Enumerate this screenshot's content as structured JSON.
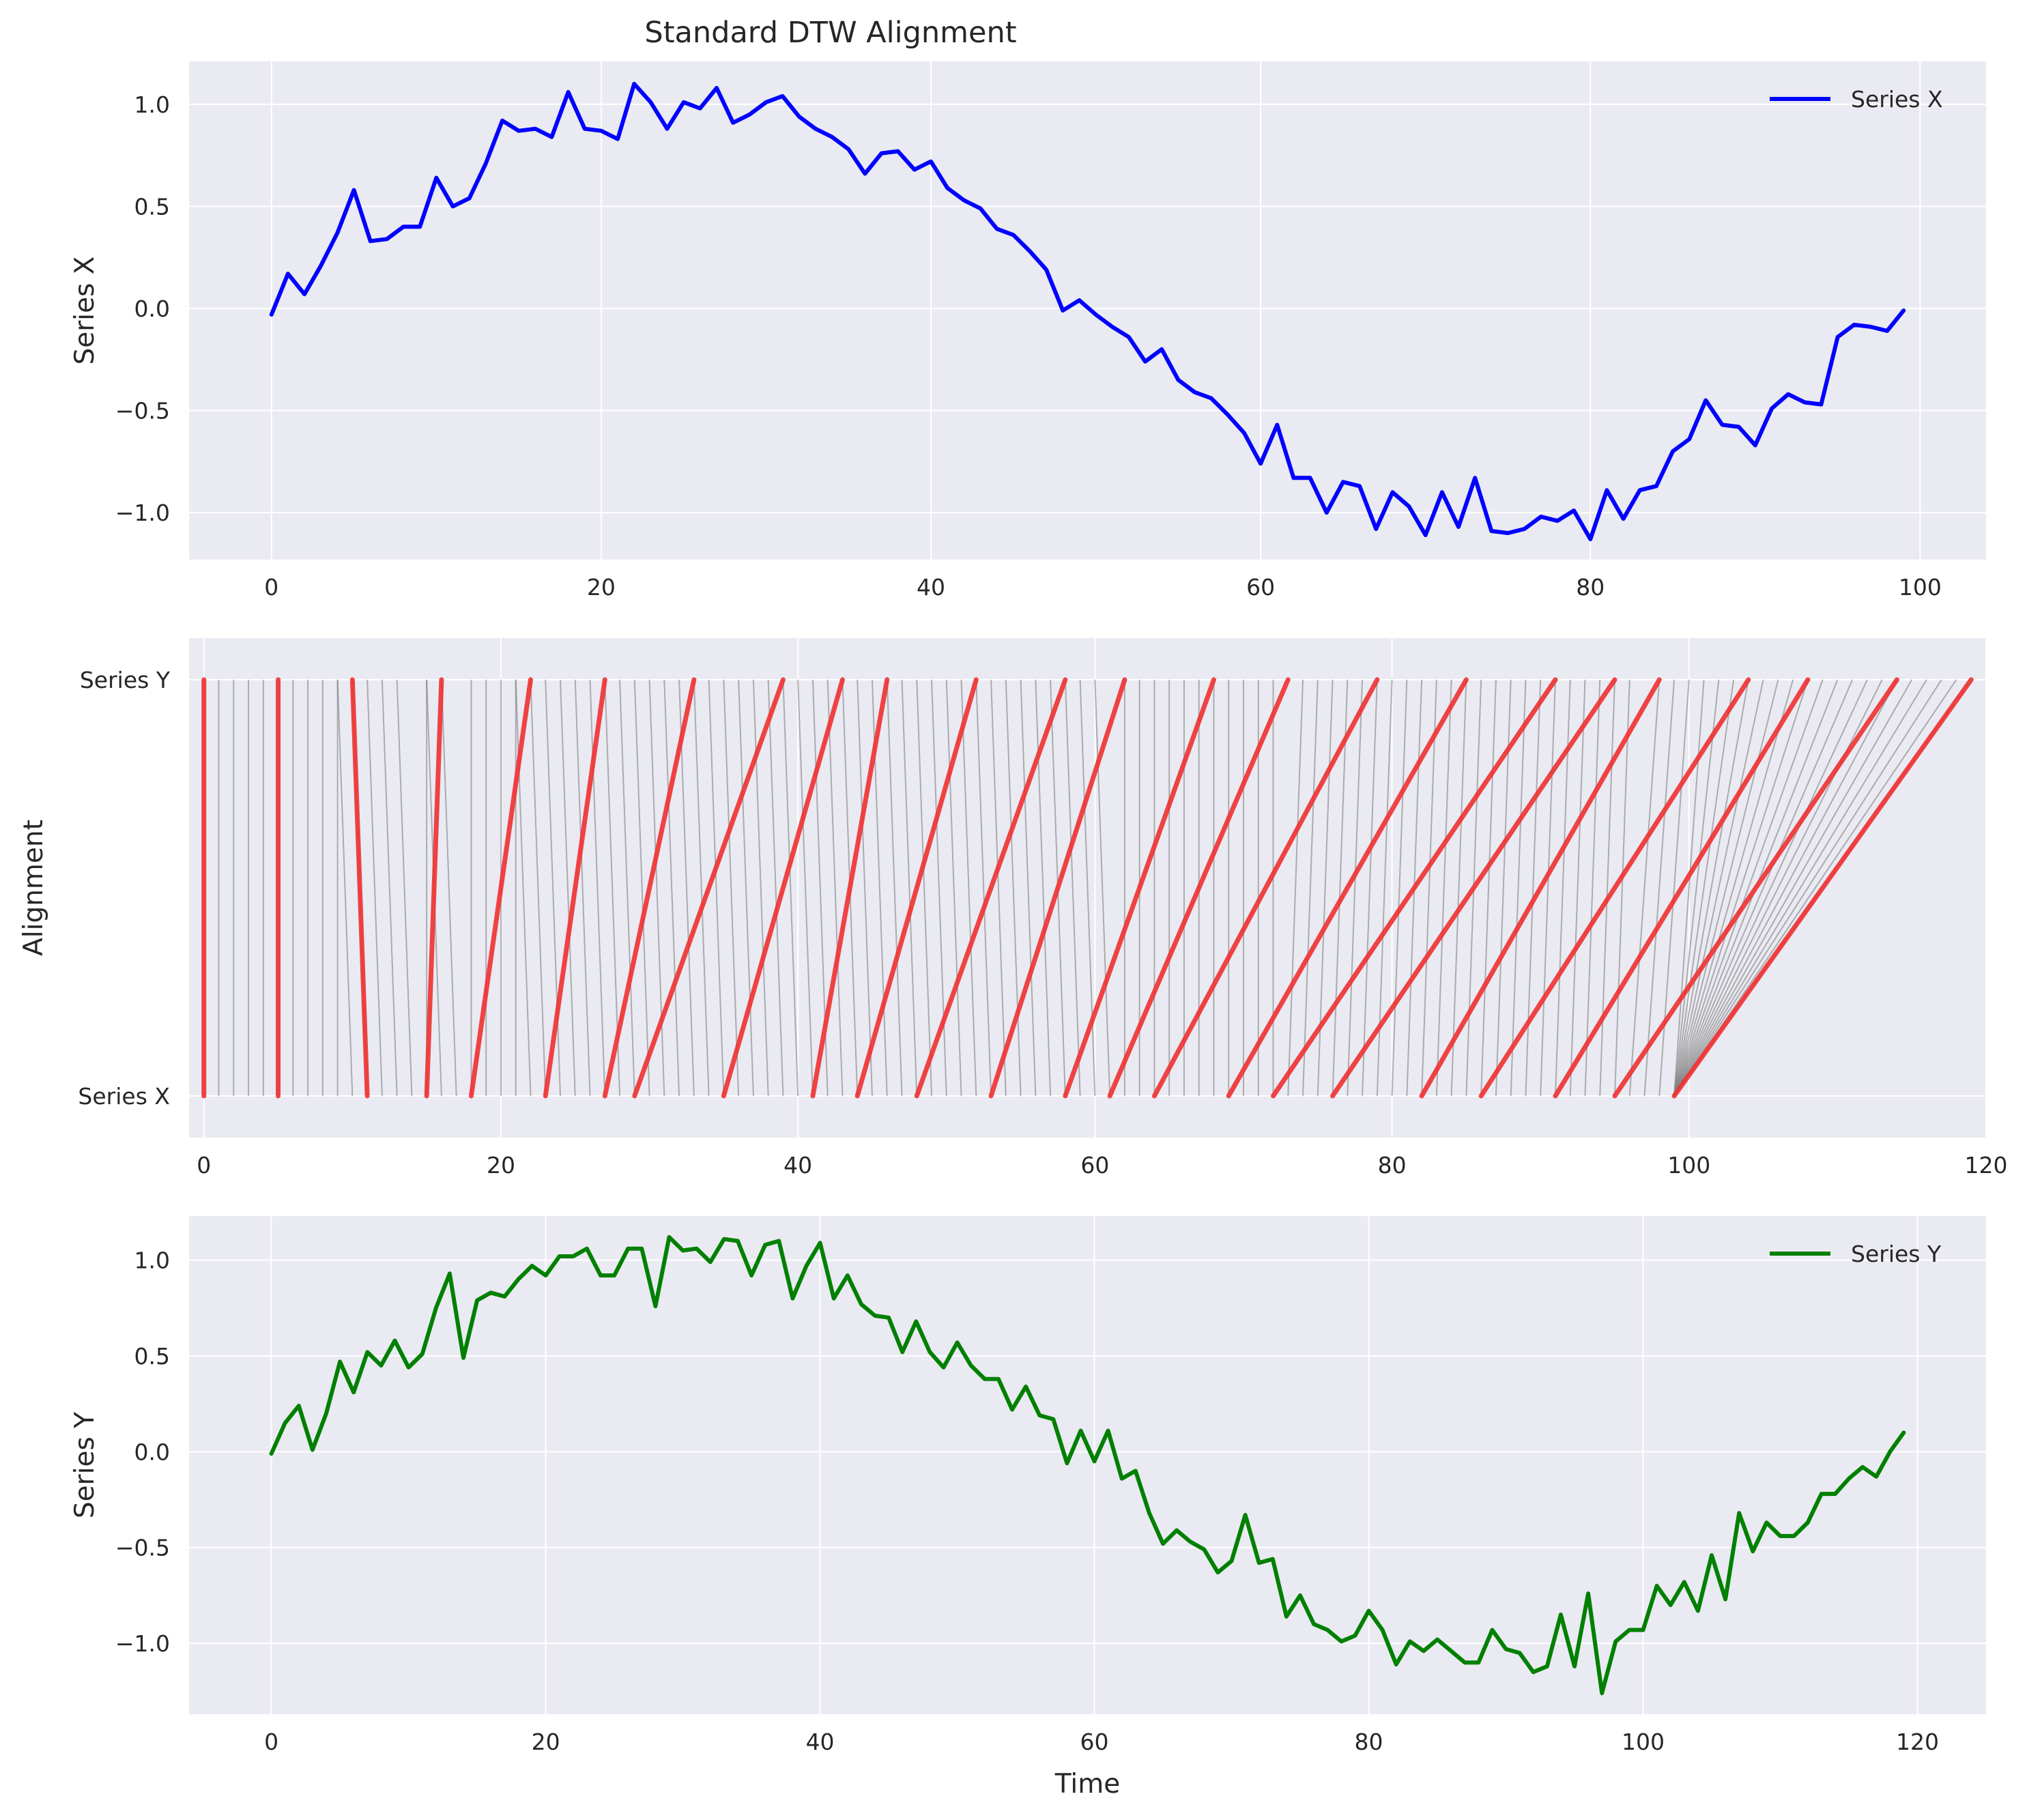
{
  "figure": {
    "title": "Standard DTW Alignment"
  },
  "colors": {
    "panel_background": "#eaeaf2",
    "grid": "#ffffff",
    "series_x": "#0000ff",
    "series_y": "#008000",
    "highlight": "#f03030",
    "connector": "#808080"
  },
  "chart_data": [
    {
      "type": "line",
      "title": "Standard DTW Alignment",
      "xlabel": "",
      "ylabel": "Series X",
      "xlim": [
        -5,
        104
      ],
      "ylim": [
        -1.23,
        1.21
      ],
      "xticks": [
        0,
        20,
        40,
        60,
        80,
        100
      ],
      "yticks": [
        1.0,
        0.5,
        0.0,
        -0.5,
        -1.0
      ],
      "ytick_labels": [
        "1.0",
        "0.5",
        "0.0",
        "−0.5",
        "−1.0"
      ],
      "grid": true,
      "legend": "top-right",
      "series": [
        {
          "name": "Series X",
          "color": "#0000ff",
          "x_start": 0,
          "values": [
            -0.03,
            0.17,
            0.07,
            0.21,
            0.37,
            0.58,
            0.33,
            0.34,
            0.4,
            0.4,
            0.64,
            0.5,
            0.54,
            0.71,
            0.92,
            0.87,
            0.88,
            0.84,
            1.06,
            0.88,
            0.87,
            0.83,
            1.1,
            1.01,
            0.88,
            1.01,
            0.98,
            1.08,
            0.91,
            0.95,
            1.01,
            1.04,
            0.94,
            0.88,
            0.84,
            0.78,
            0.66,
            0.76,
            0.77,
            0.68,
            0.72,
            0.59,
            0.53,
            0.49,
            0.39,
            0.36,
            0.28,
            0.19,
            -0.01,
            0.04,
            -0.03,
            -0.09,
            -0.14,
            -0.26,
            -0.2,
            -0.35,
            -0.41,
            -0.44,
            -0.52,
            -0.61,
            -0.76,
            -0.57,
            -0.83,
            -0.83,
            -1.0,
            -0.85,
            -0.87,
            -1.08,
            -0.9,
            -0.97,
            -1.11,
            -0.9,
            -1.07,
            -0.83,
            -1.09,
            -1.1,
            -1.08,
            -1.02,
            -1.04,
            -0.99,
            -1.13,
            -0.89,
            -1.03,
            -0.89,
            -0.87,
            -0.7,
            -0.64,
            -0.45,
            -0.57,
            -0.58,
            -0.67,
            -0.49,
            -0.42,
            -0.46,
            -0.47,
            -0.14,
            -0.08,
            -0.09,
            -0.11,
            -0.01
          ]
        }
      ]
    },
    {
      "type": "line",
      "title": "",
      "xlabel": "",
      "ylabel": "Alignment",
      "xlim": [
        -1,
        120
      ],
      "ylim": [
        -0.1,
        1.1
      ],
      "xticks": [
        0,
        20,
        40,
        60,
        80,
        100,
        120
      ],
      "yticks": [
        0,
        1
      ],
      "ytick_labels": [
        "Series X",
        "Series Y"
      ],
      "grid": true,
      "alignment_path": [
        [
          0,
          0
        ],
        [
          1,
          1
        ],
        [
          2,
          2
        ],
        [
          3,
          3
        ],
        [
          4,
          4
        ],
        [
          5,
          5
        ],
        [
          6,
          6
        ],
        [
          7,
          7
        ],
        [
          8,
          8
        ],
        [
          9,
          9
        ],
        [
          10,
          9
        ],
        [
          11,
          10
        ],
        [
          12,
          11
        ],
        [
          13,
          12
        ],
        [
          14,
          13
        ],
        [
          15,
          15
        ],
        [
          16,
          15
        ],
        [
          17,
          16
        ],
        [
          18,
          18
        ],
        [
          19,
          19
        ],
        [
          20,
          20
        ],
        [
          21,
          21
        ],
        [
          22,
          21
        ],
        [
          23,
          22
        ],
        [
          24,
          23
        ],
        [
          25,
          24
        ],
        [
          26,
          25
        ],
        [
          27,
          26
        ],
        [
          28,
          27
        ],
        [
          29,
          28
        ],
        [
          30,
          29
        ],
        [
          31,
          30
        ],
        [
          32,
          31
        ],
        [
          33,
          32
        ],
        [
          34,
          33
        ],
        [
          35,
          34
        ],
        [
          36,
          35
        ],
        [
          37,
          36
        ],
        [
          38,
          37
        ],
        [
          39,
          38
        ],
        [
          40,
          39
        ],
        [
          41,
          40
        ],
        [
          42,
          41
        ],
        [
          43,
          42
        ],
        [
          44,
          43
        ],
        [
          45,
          44
        ],
        [
          46,
          45
        ],
        [
          47,
          46
        ],
        [
          48,
          47
        ],
        [
          49,
          48
        ],
        [
          50,
          49
        ],
        [
          51,
          50
        ],
        [
          52,
          51
        ],
        [
          53,
          52
        ],
        [
          54,
          53
        ],
        [
          55,
          54
        ],
        [
          56,
          55
        ],
        [
          57,
          56
        ],
        [
          58,
          57
        ],
        [
          59,
          58
        ],
        [
          60,
          59
        ],
        [
          61,
          60
        ],
        [
          62,
          62
        ],
        [
          63,
          63
        ],
        [
          64,
          64
        ],
        [
          65,
          65
        ],
        [
          66,
          66
        ],
        [
          67,
          67
        ],
        [
          68,
          68
        ],
        [
          69,
          69
        ],
        [
          70,
          70
        ],
        [
          71,
          71
        ],
        [
          72,
          72
        ],
        [
          73,
          74
        ],
        [
          74,
          75
        ],
        [
          75,
          76
        ],
        [
          76,
          77
        ],
        [
          77,
          78
        ],
        [
          78,
          79
        ],
        [
          79,
          80
        ],
        [
          80,
          81
        ],
        [
          81,
          82
        ],
        [
          82,
          83
        ],
        [
          83,
          84
        ],
        [
          84,
          85
        ],
        [
          85,
          86
        ],
        [
          86,
          87
        ],
        [
          87,
          88
        ],
        [
          88,
          89
        ],
        [
          89,
          90
        ],
        [
          90,
          91
        ],
        [
          91,
          92
        ],
        [
          92,
          93
        ],
        [
          93,
          94
        ],
        [
          94,
          95
        ],
        [
          95,
          96
        ],
        [
          96,
          98
        ],
        [
          97,
          99
        ],
        [
          98,
          100
        ],
        [
          99,
          101
        ],
        [
          99,
          102
        ],
        [
          99,
          103
        ],
        [
          99,
          104
        ],
        [
          99,
          105
        ],
        [
          99,
          106
        ],
        [
          99,
          107
        ],
        [
          99,
          108
        ],
        [
          99,
          109
        ],
        [
          99,
          110
        ],
        [
          99,
          111
        ],
        [
          99,
          112
        ],
        [
          99,
          113
        ],
        [
          99,
          114
        ],
        [
          99,
          115
        ],
        [
          99,
          116
        ],
        [
          99,
          117
        ],
        [
          99,
          118
        ],
        [
          99,
          119
        ]
      ],
      "highlighted_links": [
        [
          0,
          0
        ],
        [
          5,
          5
        ],
        [
          11,
          10
        ],
        [
          15,
          16
        ],
        [
          18,
          22
        ],
        [
          23,
          27
        ],
        [
          27,
          33
        ],
        [
          29,
          39
        ],
        [
          35,
          43
        ],
        [
          41,
          46
        ],
        [
          44,
          52
        ],
        [
          48,
          58
        ],
        [
          53,
          62
        ],
        [
          58,
          68
        ],
        [
          61,
          73
        ],
        [
          64,
          79
        ],
        [
          69,
          85
        ],
        [
          72,
          91
        ],
        [
          76,
          95
        ],
        [
          82,
          98
        ],
        [
          86,
          104
        ],
        [
          91,
          108
        ],
        [
          95,
          114
        ],
        [
          99,
          119
        ]
      ]
    },
    {
      "type": "line",
      "title": "",
      "xlabel": "Time",
      "ylabel": "Series Y",
      "xlim": [
        -6,
        125
      ],
      "ylim": [
        -1.37,
        1.23
      ],
      "xticks": [
        0,
        20,
        40,
        60,
        80,
        100,
        120
      ],
      "yticks": [
        1.0,
        0.5,
        0.0,
        -0.5,
        -1.0
      ],
      "ytick_labels": [
        "1.0",
        "0.5",
        "0.0",
        "−0.5",
        "−1.0"
      ],
      "grid": true,
      "legend": "top-right",
      "series": [
        {
          "name": "Series Y",
          "color": "#008000",
          "x_start": 0,
          "values": [
            -0.01,
            0.15,
            0.24,
            0.01,
            0.2,
            0.47,
            0.31,
            0.52,
            0.45,
            0.58,
            0.44,
            0.51,
            0.75,
            0.93,
            0.49,
            0.79,
            0.83,
            0.81,
            0.9,
            0.97,
            0.92,
            1.02,
            1.02,
            1.06,
            0.92,
            0.92,
            1.06,
            1.06,
            0.76,
            1.12,
            1.05,
            1.06,
            0.99,
            1.11,
            1.1,
            0.92,
            1.08,
            1.1,
            0.8,
            0.97,
            1.09,
            0.8,
            0.92,
            0.77,
            0.71,
            0.7,
            0.52,
            0.68,
            0.52,
            0.44,
            0.57,
            0.45,
            0.38,
            0.38,
            0.22,
            0.34,
            0.19,
            0.17,
            -0.06,
            0.11,
            -0.05,
            0.11,
            -0.14,
            -0.1,
            -0.32,
            -0.48,
            -0.41,
            -0.47,
            -0.51,
            -0.63,
            -0.57,
            -0.33,
            -0.58,
            -0.56,
            -0.86,
            -0.75,
            -0.9,
            -0.93,
            -0.99,
            -0.96,
            -0.83,
            -0.93,
            -1.11,
            -0.99,
            -1.04,
            -0.98,
            -1.04,
            -1.1,
            -1.1,
            -0.93,
            -1.03,
            -1.05,
            -1.15,
            -1.12,
            -0.85,
            -1.12,
            -0.74,
            -1.26,
            -0.99,
            -0.93,
            -0.93,
            -0.7,
            -0.8,
            -0.68,
            -0.83,
            -0.54,
            -0.77,
            -0.32,
            -0.52,
            -0.37,
            -0.44,
            -0.44,
            -0.37,
            -0.22,
            -0.22,
            -0.14,
            -0.08,
            -0.13,
            0.0,
            0.1
          ]
        }
      ]
    }
  ]
}
